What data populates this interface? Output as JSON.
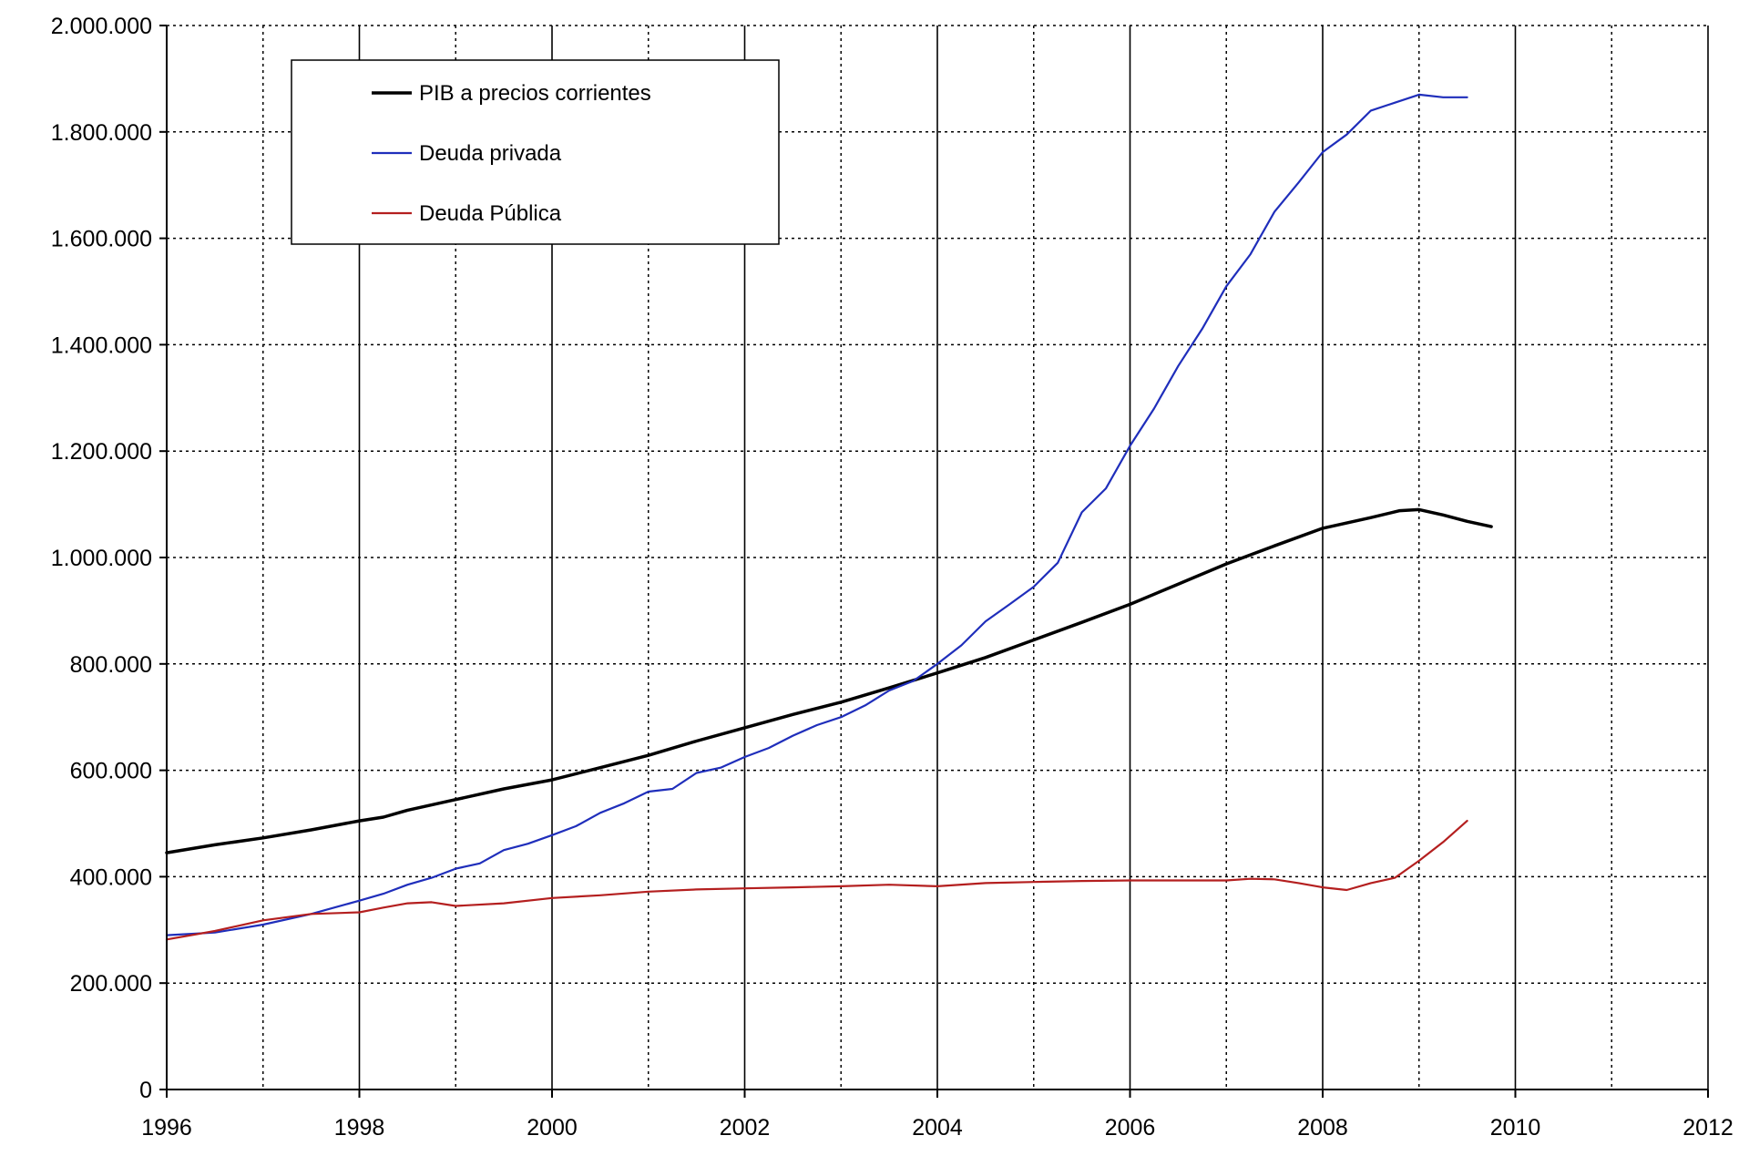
{
  "chart_data": {
    "type": "line",
    "xlim": [
      1996,
      2012
    ],
    "ylim": [
      0,
      2000000
    ],
    "x_ticks": [
      1996,
      1998,
      2000,
      2002,
      2004,
      2006,
      2008,
      2010,
      2012
    ],
    "x_tick_labels": [
      "1996",
      "1998",
      "2000",
      "2002",
      "2004",
      "2006",
      "2008",
      "2010",
      "2012"
    ],
    "y_ticks": [
      0,
      200000,
      400000,
      600000,
      800000,
      1000000,
      1200000,
      1400000,
      1600000,
      1800000,
      2000000
    ],
    "y_tick_labels": [
      "0",
      "200.000",
      "400.000",
      "600.000",
      "800.000",
      "1.000.000",
      "1.200.000",
      "1.400.000",
      "1.600.000",
      "1.800.000",
      "2.000.000"
    ],
    "grid": {
      "major_x": "solid",
      "minor_x": "dotted",
      "y": "dotted"
    },
    "legend_position": "top-left",
    "series": [
      {
        "name": "PIB a precios corrientes",
        "color": "#000000",
        "x": [
          1996,
          1996.5,
          1997,
          1997.5,
          1998,
          1998.25,
          1998.5,
          1999,
          1999.5,
          2000,
          2000.5,
          2001,
          2001.5,
          2002,
          2002.5,
          2003,
          2003.5,
          2004,
          2004.5,
          2005,
          2005.5,
          2006,
          2006.5,
          2007,
          2007.5,
          2008,
          2008.5,
          2008.8,
          2009,
          2009.25,
          2009.5,
          2009.75
        ],
        "y": [
          445000,
          460000,
          473000,
          488000,
          505000,
          512000,
          525000,
          545000,
          565000,
          582000,
          605000,
          628000,
          655000,
          680000,
          705000,
          728000,
          755000,
          783000,
          812000,
          845000,
          878000,
          912000,
          950000,
          988000,
          1022000,
          1055000,
          1075000,
          1088000,
          1090000,
          1080000,
          1068000,
          1058000
        ]
      },
      {
        "name": "Deuda privada",
        "color": "#1f2ebb",
        "x": [
          1996,
          1996.5,
          1997,
          1997.5,
          1998,
          1998.25,
          1998.5,
          1998.75,
          1999,
          1999.25,
          1999.5,
          1999.75,
          2000,
          2000.25,
          2000.5,
          2000.75,
          2001,
          2001.25,
          2001.5,
          2001.75,
          2002,
          2002.25,
          2002.5,
          2002.75,
          2003,
          2003.25,
          2003.5,
          2003.75,
          2004,
          2004.25,
          2004.5,
          2004.75,
          2005,
          2005.25,
          2005.5,
          2005.75,
          2006,
          2006.25,
          2006.5,
          2006.75,
          2007,
          2007.25,
          2007.5,
          2007.75,
          2008,
          2008.25,
          2008.5,
          2008.75,
          2009,
          2009.25,
          2009.5
        ],
        "y": [
          290000,
          295000,
          310000,
          330000,
          355000,
          368000,
          385000,
          398000,
          415000,
          425000,
          450000,
          462000,
          478000,
          495000,
          520000,
          538000,
          560000,
          565000,
          595000,
          605000,
          625000,
          642000,
          665000,
          685000,
          700000,
          722000,
          750000,
          768000,
          800000,
          835000,
          880000,
          912000,
          945000,
          990000,
          1085000,
          1130000,
          1210000,
          1280000,
          1360000,
          1430000,
          1510000,
          1570000,
          1650000,
          1705000,
          1762000,
          1795000,
          1840000,
          1855000,
          1870000,
          1865000,
          1865000
        ]
      },
      {
        "name": "Deuda Pública",
        "color": "#b41f1f",
        "x": [
          1996,
          1996.5,
          1997,
          1997.5,
          1998,
          1998.25,
          1998.5,
          1998.75,
          1999,
          1999.5,
          2000,
          2000.5,
          2001,
          2001.5,
          2002,
          2002.5,
          2003,
          2003.5,
          2004,
          2004.5,
          2005,
          2005.5,
          2006,
          2006.5,
          2007,
          2007.25,
          2007.5,
          2007.75,
          2008,
          2008.25,
          2008.5,
          2008.75,
          2009,
          2009.25,
          2009.5
        ],
        "y": [
          282000,
          298000,
          318000,
          330000,
          333000,
          342000,
          350000,
          352000,
          345000,
          350000,
          360000,
          365000,
          372000,
          376000,
          378000,
          380000,
          382000,
          385000,
          382000,
          388000,
          390000,
          392000,
          393000,
          393000,
          393000,
          396000,
          395000,
          388000,
          380000,
          375000,
          388000,
          398000,
          430000,
          465000,
          505000
        ]
      }
    ]
  }
}
